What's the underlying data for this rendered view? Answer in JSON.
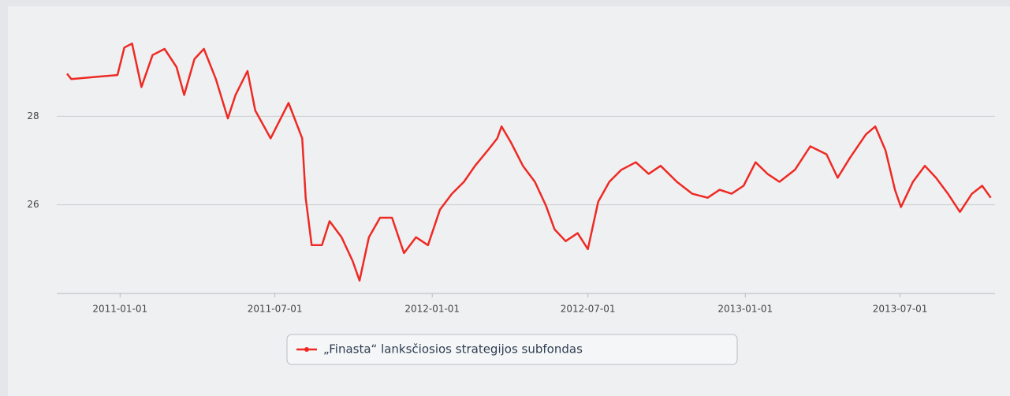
{
  "chart_data": {
    "type": "line",
    "x": [
      "2010-10-31",
      "2010-11-05",
      "2010-12-29",
      "2011-01-06",
      "2011-01-15",
      "2011-01-26",
      "2011-02-08",
      "2011-02-22",
      "2011-03-08",
      "2011-03-17",
      "2011-03-29",
      "2011-04-09",
      "2011-04-23",
      "2011-05-07",
      "2011-05-16",
      "2011-05-30",
      "2011-06-08",
      "2011-06-26",
      "2011-07-17",
      "2011-08-02",
      "2011-08-06",
      "2011-08-13",
      "2011-08-25",
      "2011-09-03",
      "2011-09-17",
      "2011-09-30",
      "2011-10-08",
      "2011-10-19",
      "2011-11-01",
      "2011-11-15",
      "2011-11-29",
      "2011-12-13",
      "2011-12-27",
      "2012-01-10",
      "2012-01-24",
      "2012-02-07",
      "2012-02-20",
      "2012-03-06",
      "2012-03-17",
      "2012-03-22",
      "2012-04-02",
      "2012-04-16",
      "2012-04-30",
      "2012-05-13",
      "2012-05-23",
      "2012-06-05",
      "2012-06-19",
      "2012-07-01",
      "2012-07-13",
      "2012-07-26",
      "2012-08-09",
      "2012-08-26",
      "2012-09-10",
      "2012-09-24",
      "2012-10-13",
      "2012-10-31",
      "2012-11-18",
      "2012-12-02",
      "2012-12-16",
      "2012-12-30",
      "2013-01-13",
      "2013-01-27",
      "2013-02-10",
      "2013-02-28",
      "2013-03-18",
      "2013-04-06",
      "2013-04-19",
      "2013-05-03",
      "2013-05-22",
      "2013-06-02",
      "2013-06-14",
      "2013-06-25",
      "2013-07-02",
      "2013-07-16",
      "2013-07-30",
      "2013-08-12",
      "2013-08-26",
      "2013-09-09",
      "2013-09-23",
      "2013-10-05",
      "2013-10-15"
    ],
    "series": [
      {
        "name": "„Finasta“ lanksčiosios strategijos subfondas",
        "color": "#ee2a24",
        "values": [
          28.96,
          28.84,
          28.93,
          29.55,
          29.64,
          28.66,
          29.38,
          29.52,
          29.11,
          28.48,
          29.29,
          29.52,
          28.84,
          27.95,
          28.48,
          29.02,
          28.13,
          27.5,
          28.3,
          27.5,
          26.16,
          25.09,
          25.09,
          25.63,
          25.27,
          24.73,
          24.29,
          25.27,
          25.71,
          25.71,
          24.91,
          25.27,
          25.09,
          25.89,
          26.25,
          26.52,
          26.88,
          27.23,
          27.5,
          27.77,
          27.41,
          26.88,
          26.52,
          25.98,
          25.45,
          25.18,
          25.36,
          25.0,
          26.07,
          26.52,
          26.79,
          26.96,
          26.7,
          26.88,
          26.52,
          26.25,
          26.16,
          26.34,
          26.25,
          26.43,
          26.96,
          26.7,
          26.52,
          26.79,
          27.32,
          27.14,
          26.61,
          27.05,
          27.59,
          27.77,
          27.23,
          26.34,
          25.95,
          26.52,
          26.88,
          26.61,
          26.25,
          25.84,
          26.25,
          26.43,
          26.16
        ]
      }
    ],
    "xlim": [
      "2010-10-19",
      "2013-10-20"
    ],
    "xticks": [
      "2011-01-01",
      "2011-07-01",
      "2012-01-01",
      "2012-07-01",
      "2013-01-01",
      "2013-07-01"
    ],
    "ylim": [
      24,
      30
    ],
    "yticks": [
      26,
      28
    ],
    "grid": true,
    "legend": "bottom"
  }
}
